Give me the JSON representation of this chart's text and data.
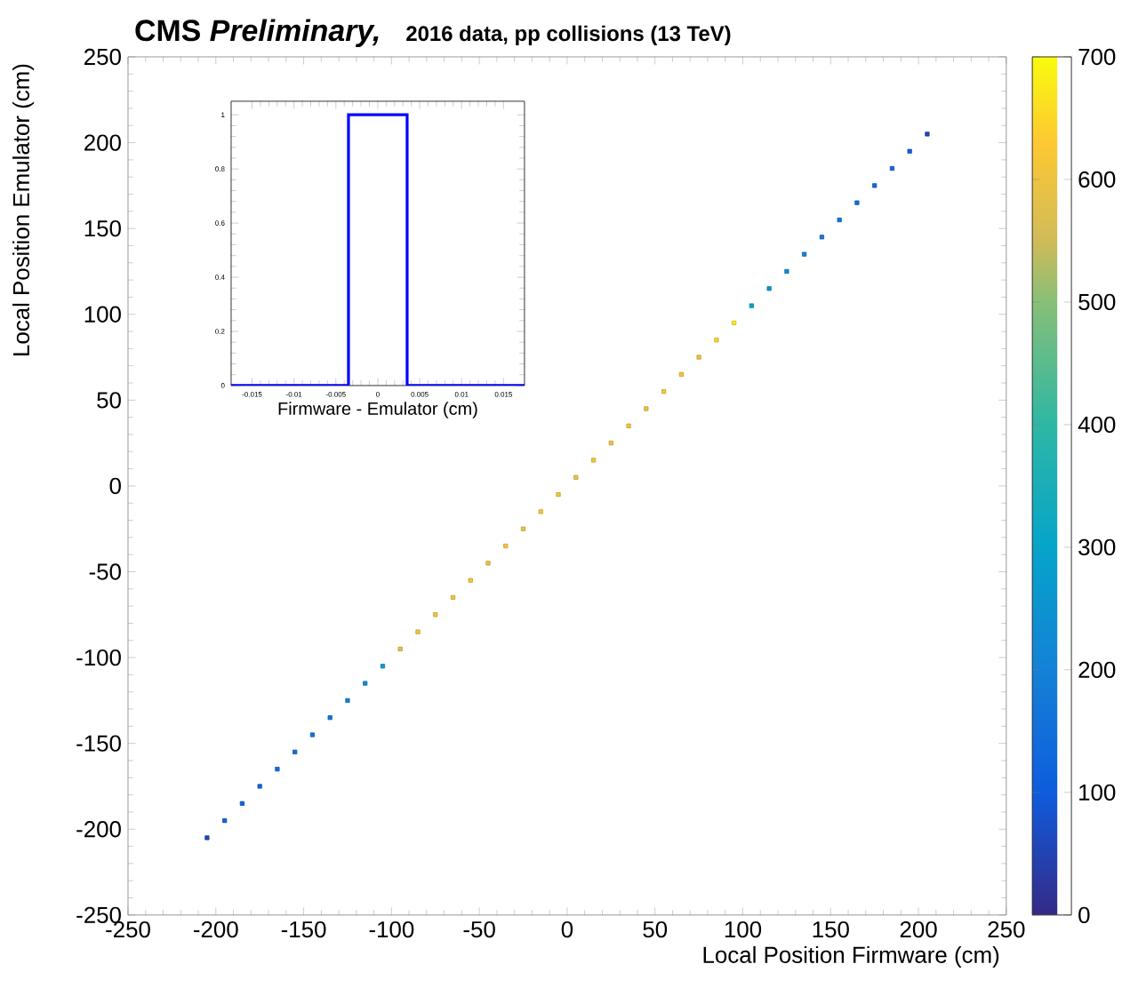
{
  "chart_data": [
    {
      "type": "scatter",
      "title": "CMS *Preliminary,*",
      "subtitle": "2016 data, pp collisions    (13 TeV)",
      "xlabel": "Local Position Firmware (cm)",
      "ylabel": "Local Position Emulator (cm)",
      "x": [
        -205,
        -195,
        -185,
        -175,
        -165,
        -155,
        -145,
        -135,
        -125,
        -115,
        -105,
        -95,
        -85,
        -75,
        -65,
        -55,
        -45,
        -35,
        -25,
        -15,
        -5,
        5,
        15,
        25,
        35,
        45,
        55,
        65,
        75,
        85,
        95,
        105,
        115,
        125,
        135,
        145,
        155,
        165,
        175,
        185,
        195,
        205
      ],
      "values": [
        -205,
        -195,
        -185,
        -175,
        -165,
        -155,
        -145,
        -135,
        -125,
        -115,
        -105,
        -95,
        -85,
        -75,
        -65,
        -55,
        -45,
        -35,
        -25,
        -15,
        -5,
        5,
        15,
        25,
        35,
        45,
        55,
        65,
        75,
        85,
        95,
        105,
        115,
        125,
        135,
        145,
        155,
        165,
        175,
        185,
        195,
        205
      ],
      "cvalues": [
        60,
        110,
        120,
        130,
        140,
        150,
        160,
        170,
        200,
        230,
        280,
        580,
        600,
        610,
        600,
        620,
        600,
        610,
        600,
        620,
        610,
        600,
        620,
        600,
        610,
        600,
        620,
        610,
        600,
        640,
        680,
        300,
        250,
        220,
        200,
        180,
        160,
        150,
        140,
        130,
        110,
        60
      ],
      "marker": "square",
      "xlim": [
        -250,
        250
      ],
      "ylim": [
        -250,
        250
      ],
      "xticks": [
        -250,
        -200,
        -150,
        -100,
        -50,
        0,
        50,
        100,
        150,
        200,
        250
      ],
      "yticks": [
        -250,
        -200,
        -150,
        -100,
        -50,
        0,
        50,
        100,
        150,
        200,
        250
      ],
      "clim": [
        0,
        700
      ],
      "cticks": [
        0,
        100,
        200,
        300,
        400,
        500,
        600,
        700
      ]
    },
    {
      "type": "histogram",
      "xlabel": "Firmware - Emulator (cm)",
      "bins": [
        -0.0175,
        -0.0035,
        0.0035,
        0.0175
      ],
      "values": [
        0,
        1,
        0
      ],
      "color": "#0000ff",
      "xlim": [
        -0.0175,
        0.0175
      ],
      "ylim": [
        0,
        1.05
      ],
      "xticks": [
        -0.015,
        -0.01,
        -0.005,
        0,
        0.005,
        0.01,
        0.015
      ],
      "yticks": [
        0,
        0.2,
        0.4,
        0.6,
        0.8,
        1
      ]
    }
  ]
}
